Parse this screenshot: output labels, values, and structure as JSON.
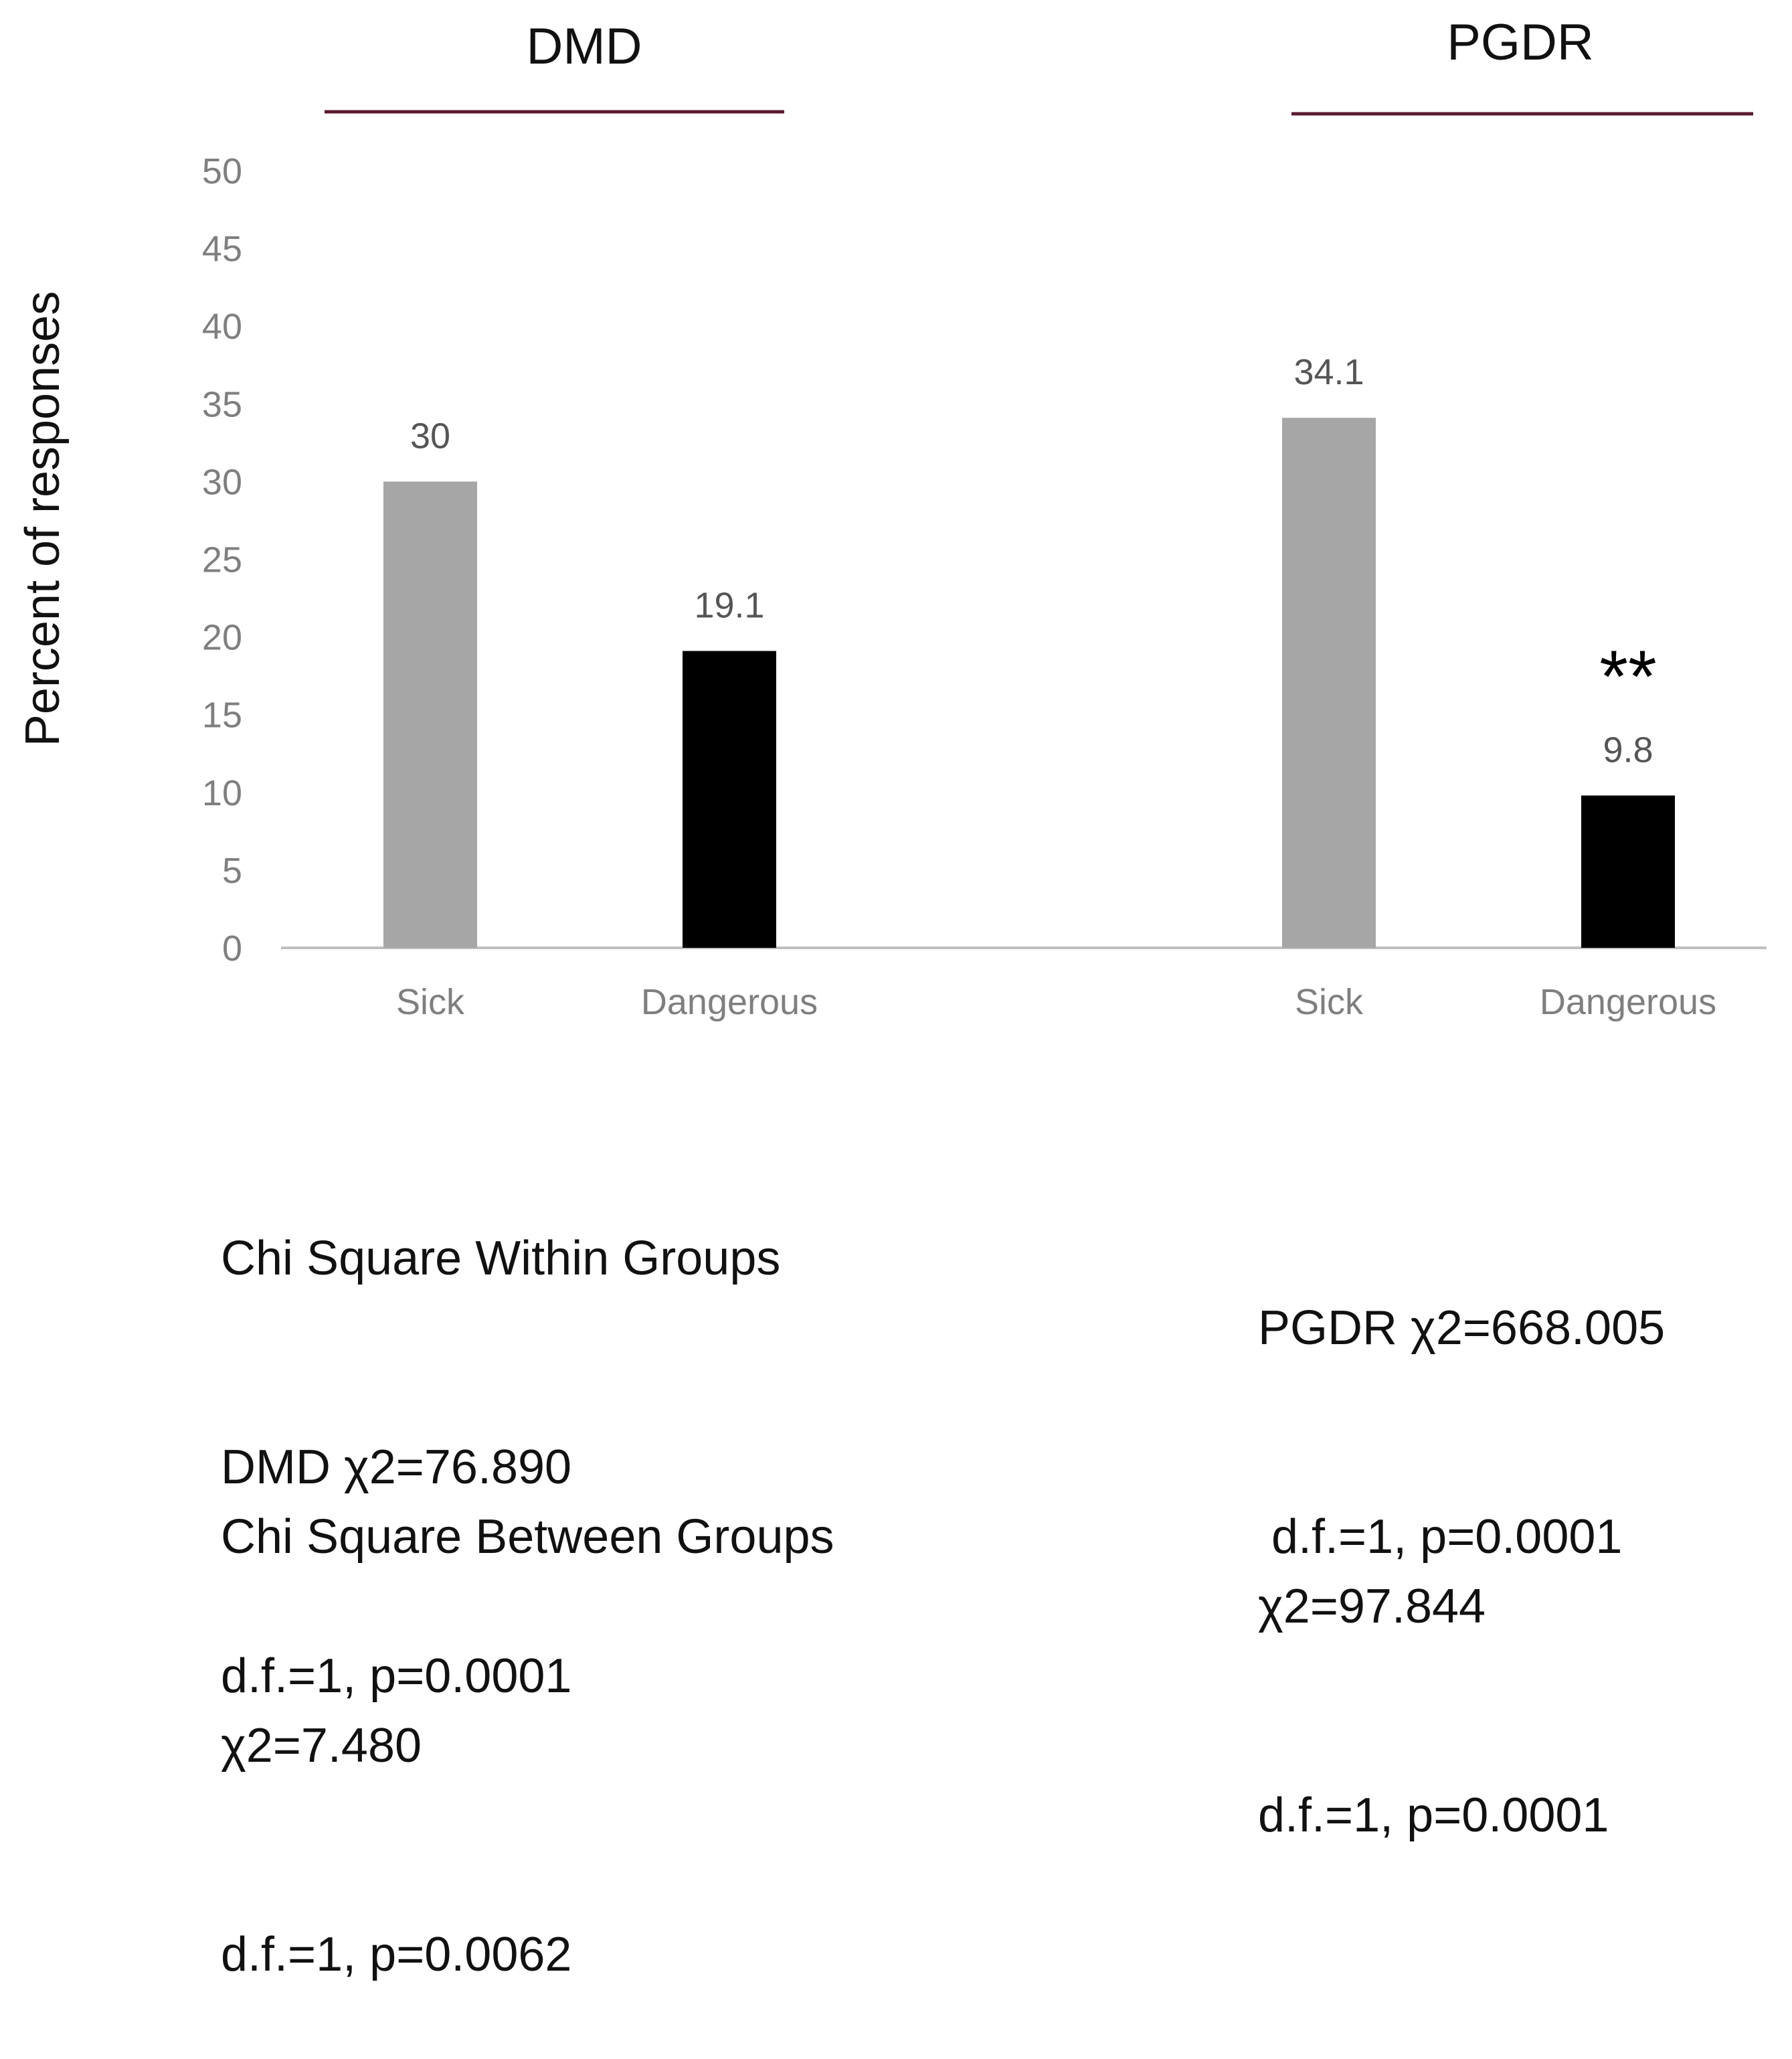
{
  "chart_data": {
    "type": "bar",
    "ylabel": "Percent of responses",
    "ylim": [
      0,
      50
    ],
    "ytick_step": 5,
    "groups": [
      {
        "name": "DMD",
        "bars": [
          {
            "category": "Sick",
            "value": 30,
            "label": "30",
            "color": "#a6a6a6"
          },
          {
            "category": "Dangerous",
            "value": 19.1,
            "label": "19.1",
            "color": "#000000"
          }
        ],
        "annotation": ""
      },
      {
        "name": "PGDR",
        "bars": [
          {
            "category": "Sick",
            "value": 34.1,
            "label": "34.1",
            "color": "#a6a6a6"
          },
          {
            "category": "Dangerous",
            "value": 9.8,
            "label": "9.8",
            "color": "#000000"
          }
        ],
        "annotation": "**"
      }
    ],
    "colors": {
      "group_line": "#5a1a2e",
      "axis": "#bfbfbf",
      "tick_label": "#7f7f7f",
      "data_label": "#555555"
    }
  },
  "stats": {
    "within_title": "Chi Square Within Groups",
    "dmd_within": "DMD χ2=76.890",
    "dmd_within_df": "d.f.=1, p=0.0001",
    "pgdr_within": "PGDR χ2=668.005",
    "pgdr_within_df": " d.f.=1, p=0.0001",
    "between_title": "Chi Square Between Groups",
    "dmd_between": "χ2=7.480",
    "dmd_between_df": "d.f.=1, p=0.0062",
    "pgdr_between": "χ2=97.844",
    "pgdr_between_df": "d.f.=1, p=0.0001"
  }
}
